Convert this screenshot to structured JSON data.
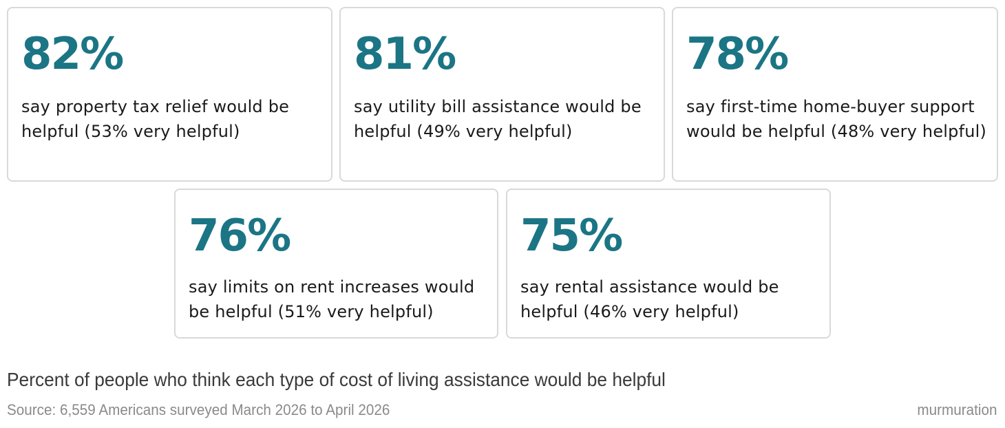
{
  "chart_data": {
    "type": "table",
    "title": "Percent of people who think each type of cost of living assistance would be helpful",
    "source": "Source: 6,559 Americans surveyed March 2026 to April 2026",
    "brand": "murmuration",
    "accent_color": "#1b7585",
    "cards": [
      {
        "stat": "82%",
        "value": 82,
        "description": "say property tax relief would be helpful (53% very helpful)"
      },
      {
        "stat": "81%",
        "value": 81,
        "description": "say utility bill assistance would be helpful (49% very helpful)"
      },
      {
        "stat": "78%",
        "value": 78,
        "description": "say first-time home-buyer support would be helpful (48% very helpful)"
      },
      {
        "stat": "76%",
        "value": 76,
        "description": "say limits on rent increases would be helpful (51% very helpful)"
      },
      {
        "stat": "75%",
        "value": 75,
        "description": "say rental assistance would be helpful (46% very helpful)"
      }
    ]
  }
}
